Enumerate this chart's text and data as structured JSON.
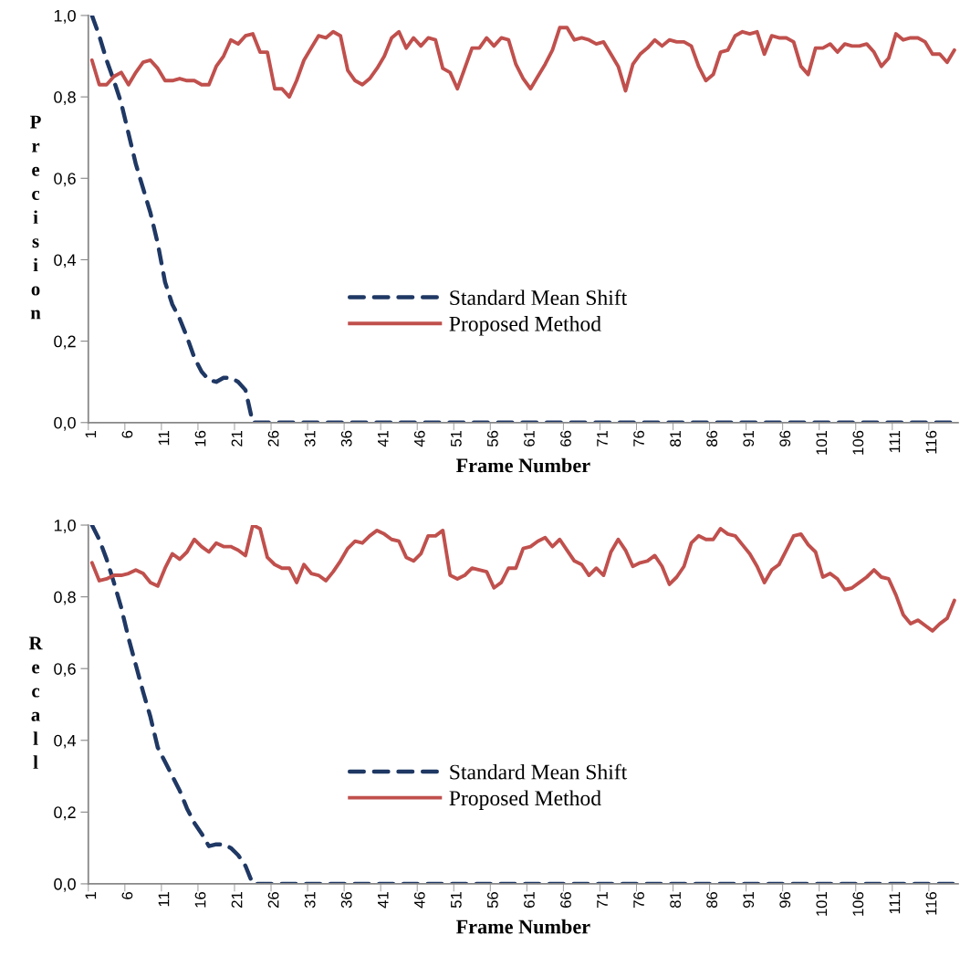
{
  "chart_data": [
    {
      "type": "line",
      "xlabel": "Frame Number",
      "ylabel": "Precision",
      "legend": "center",
      "ylim": [
        0,
        1
      ],
      "yticks": [
        {
          "value": 0,
          "label": "0,0"
        },
        {
          "value": 0.2,
          "label": "0,2"
        },
        {
          "value": 0.4,
          "label": "0,4"
        },
        {
          "value": 0.6,
          "label": "0,6"
        },
        {
          "value": 0.8,
          "label": "0,8"
        },
        {
          "value": 1,
          "label": "1,0"
        }
      ],
      "categories": [
        "1",
        null,
        null,
        null,
        null,
        "6",
        null,
        null,
        null,
        null,
        "11",
        null,
        null,
        null,
        null,
        "16",
        null,
        null,
        null,
        null,
        "21",
        null,
        null,
        null,
        null,
        "26",
        null,
        null,
        null,
        null,
        "31",
        null,
        null,
        null,
        null,
        "36",
        null,
        null,
        null,
        null,
        "41",
        null,
        null,
        null,
        null,
        "46",
        null,
        null,
        null,
        null,
        "51",
        null,
        null,
        null,
        null,
        "56",
        null,
        null,
        null,
        null,
        "61",
        null,
        null,
        null,
        null,
        "66",
        null,
        null,
        null,
        null,
        "71",
        null,
        null,
        null,
        null,
        "76",
        null,
        null,
        null,
        null,
        "81",
        null,
        null,
        null,
        null,
        "86",
        null,
        null,
        null,
        null,
        "91",
        null,
        null,
        null,
        null,
        "96",
        null,
        null,
        null,
        null,
        "101",
        null,
        null,
        null,
        null,
        "106",
        null,
        null,
        null,
        null,
        "111",
        null,
        null,
        null,
        null,
        "116",
        null,
        null,
        null
      ],
      "series": [
        {
          "name": "Standard Mean Shift",
          "color": "#1f3864",
          "line_style": "dashed",
          "values": [
            1.0,
            0.95,
            0.89,
            0.84,
            0.785,
            0.71,
            0.635,
            0.575,
            0.515,
            0.44,
            0.345,
            0.29,
            0.255,
            0.21,
            0.16,
            0.125,
            0.105,
            0.1,
            0.11,
            0.11,
            0.1,
            0.08,
            0,
            0,
            0,
            0,
            0,
            0,
            0,
            0,
            0,
            0,
            0,
            0,
            0,
            0,
            0,
            0,
            0,
            0,
            0,
            0,
            0,
            0,
            0,
            0,
            0,
            0,
            0,
            0,
            0,
            0,
            0,
            0,
            0,
            0,
            0,
            0,
            0,
            0,
            0,
            0,
            0,
            0,
            0,
            0,
            0,
            0,
            0,
            0,
            0,
            0,
            0,
            0,
            0,
            0,
            0,
            0,
            0,
            0,
            0,
            0,
            0,
            0,
            0,
            0,
            0,
            0,
            0,
            0,
            0,
            0,
            0,
            0,
            0,
            0,
            0,
            0,
            0,
            0,
            0,
            0,
            0,
            0,
            0,
            0,
            0,
            0,
            0,
            0,
            0,
            0,
            0,
            0,
            0,
            0,
            0,
            0,
            0
          ]
        },
        {
          "name": "Proposed Method",
          "color": "#c0504d",
          "line_style": "solid",
          "values": [
            0.89,
            0.83,
            0.83,
            0.85,
            0.86,
            0.83,
            0.86,
            0.885,
            0.89,
            0.87,
            0.84,
            0.84,
            0.845,
            0.84,
            0.84,
            0.83,
            0.83,
            0.875,
            0.9,
            0.94,
            0.93,
            0.95,
            0.955,
            0.91,
            0.91,
            0.82,
            0.82,
            0.8,
            0.84,
            0.89,
            0.92,
            0.95,
            0.945,
            0.96,
            0.95,
            0.865,
            0.84,
            0.83,
            0.845,
            0.87,
            0.9,
            0.945,
            0.96,
            0.92,
            0.945,
            0.925,
            0.945,
            0.94,
            0.87,
            0.86,
            0.82,
            0.87,
            0.92,
            0.92,
            0.945,
            0.925,
            0.945,
            0.94,
            0.88,
            0.845,
            0.82,
            0.85,
            0.88,
            0.915,
            0.97,
            0.97,
            0.94,
            0.945,
            0.94,
            0.93,
            0.935,
            0.905,
            0.875,
            0.815,
            0.88,
            0.905,
            0.92,
            0.94,
            0.925,
            0.94,
            0.935,
            0.935,
            0.925,
            0.875,
            0.84,
            0.855,
            0.91,
            0.915,
            0.95,
            0.96,
            0.955,
            0.96,
            0.905,
            0.95,
            0.945,
            0.945,
            0.935,
            0.875,
            0.855,
            0.92,
            0.92,
            0.93,
            0.91,
            0.93,
            0.925,
            0.925,
            0.93,
            0.91,
            0.875,
            0.895,
            0.955,
            0.94,
            0.945,
            0.945,
            0.935,
            0.905,
            0.905,
            0.885,
            0.915
          ]
        }
      ]
    },
    {
      "type": "line",
      "xlabel": "Frame Number",
      "ylabel": "Recall",
      "legend": "center",
      "ylim": [
        0,
        1
      ],
      "yticks": [
        {
          "value": 0,
          "label": "0,0"
        },
        {
          "value": 0.2,
          "label": "0,2"
        },
        {
          "value": 0.4,
          "label": "0,4"
        },
        {
          "value": 0.6,
          "label": "0,6"
        },
        {
          "value": 0.8,
          "label": "0,8"
        },
        {
          "value": 1,
          "label": "1,0"
        }
      ],
      "categories": [
        "1",
        null,
        null,
        null,
        null,
        "6",
        null,
        null,
        null,
        null,
        "11",
        null,
        null,
        null,
        null,
        "16",
        null,
        null,
        null,
        null,
        "21",
        null,
        null,
        null,
        null,
        "26",
        null,
        null,
        null,
        null,
        "31",
        null,
        null,
        null,
        null,
        "36",
        null,
        null,
        null,
        null,
        "41",
        null,
        null,
        null,
        null,
        "46",
        null,
        null,
        null,
        null,
        "51",
        null,
        null,
        null,
        null,
        "56",
        null,
        null,
        null,
        null,
        "61",
        null,
        null,
        null,
        null,
        "66",
        null,
        null,
        null,
        null,
        "71",
        null,
        null,
        null,
        null,
        "76",
        null,
        null,
        null,
        null,
        "81",
        null,
        null,
        null,
        null,
        "86",
        null,
        null,
        null,
        null,
        "91",
        null,
        null,
        null,
        null,
        "96",
        null,
        null,
        null,
        null,
        "101",
        null,
        null,
        null,
        null,
        "106",
        null,
        null,
        null,
        null,
        "111",
        null,
        null,
        null,
        null,
        "116",
        null,
        null,
        null
      ],
      "series": [
        {
          "name": "Standard Mean Shift",
          "color": "#1f3864",
          "line_style": "dashed",
          "values": [
            1.0,
            0.96,
            0.905,
            0.84,
            0.77,
            0.685,
            0.61,
            0.535,
            0.465,
            0.38,
            0.34,
            0.3,
            0.26,
            0.21,
            0.17,
            0.14,
            0.105,
            0.11,
            0.11,
            0.1,
            0.08,
            0.05,
            0,
            0,
            0,
            0,
            0,
            0,
            0,
            0,
            0,
            0,
            0,
            0,
            0,
            0,
            0,
            0,
            0,
            0,
            0,
            0,
            0,
            0,
            0,
            0,
            0,
            0,
            0,
            0,
            0,
            0,
            0,
            0,
            0,
            0,
            0,
            0,
            0,
            0,
            0,
            0,
            0,
            0,
            0,
            0,
            0,
            0,
            0,
            0,
            0,
            0,
            0,
            0,
            0,
            0,
            0,
            0,
            0,
            0,
            0,
            0,
            0,
            0,
            0,
            0,
            0,
            0,
            0,
            0,
            0,
            0,
            0,
            0,
            0,
            0,
            0,
            0,
            0,
            0,
            0,
            0,
            0,
            0,
            0,
            0,
            0,
            0,
            0,
            0,
            0,
            0,
            0,
            0,
            0,
            0,
            0,
            0,
            0
          ]
        },
        {
          "name": "Proposed Method",
          "color": "#c0504d",
          "line_style": "solid",
          "values": [
            0.895,
            0.845,
            0.85,
            0.86,
            0.86,
            0.865,
            0.875,
            0.865,
            0.84,
            0.83,
            0.88,
            0.92,
            0.905,
            0.925,
            0.96,
            0.94,
            0.925,
            0.95,
            0.94,
            0.94,
            0.93,
            0.915,
            1.0,
            0.99,
            0.91,
            0.89,
            0.88,
            0.88,
            0.84,
            0.89,
            0.865,
            0.86,
            0.845,
            0.87,
            0.9,
            0.935,
            0.955,
            0.95,
            0.97,
            0.985,
            0.975,
            0.96,
            0.955,
            0.91,
            0.9,
            0.92,
            0.97,
            0.97,
            0.985,
            0.86,
            0.85,
            0.86,
            0.88,
            0.875,
            0.87,
            0.825,
            0.84,
            0.88,
            0.88,
            0.935,
            0.94,
            0.955,
            0.965,
            0.94,
            0.96,
            0.93,
            0.9,
            0.89,
            0.86,
            0.88,
            0.86,
            0.925,
            0.96,
            0.93,
            0.885,
            0.895,
            0.9,
            0.915,
            0.885,
            0.835,
            0.855,
            0.885,
            0.95,
            0.97,
            0.96,
            0.96,
            0.99,
            0.975,
            0.97,
            0.945,
            0.92,
            0.885,
            0.84,
            0.875,
            0.89,
            0.93,
            0.97,
            0.975,
            0.945,
            0.925,
            0.855,
            0.865,
            0.85,
            0.82,
            0.825,
            0.84,
            0.855,
            0.875,
            0.855,
            0.85,
            0.805,
            0.75,
            0.725,
            0.735,
            0.72,
            0.705,
            0.725,
            0.74,
            0.79
          ]
        }
      ]
    }
  ]
}
